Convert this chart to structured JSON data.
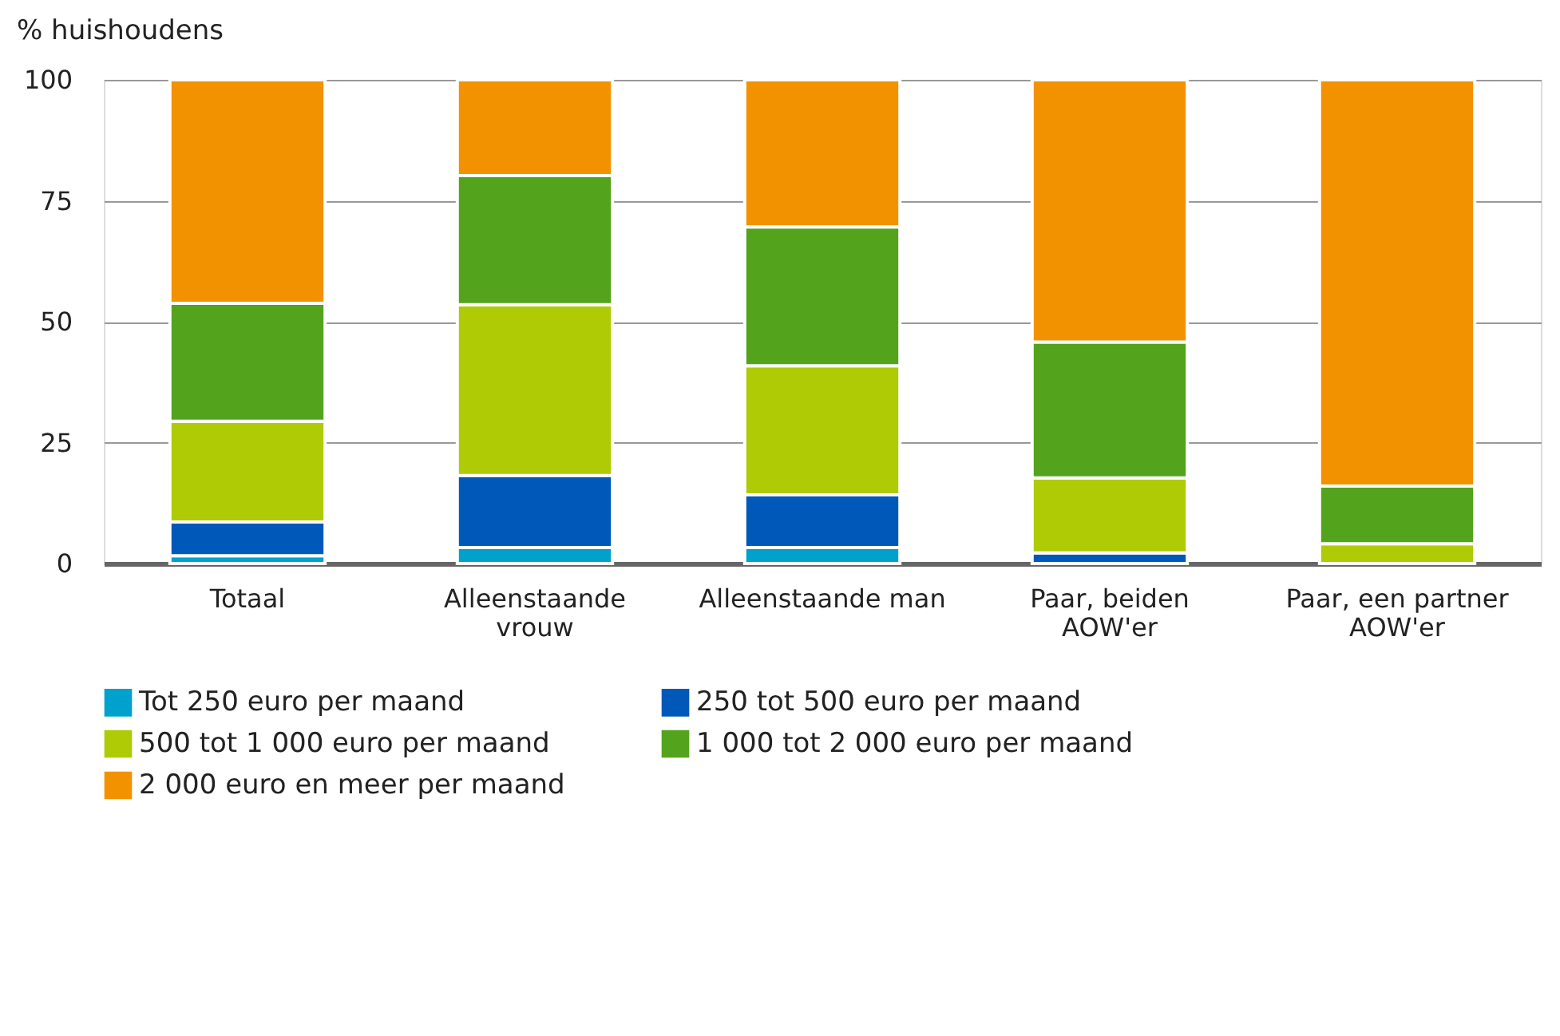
{
  "chart_data": {
    "type": "bar",
    "stacked": true,
    "ylabel": "% huishoudens",
    "categories": [
      "Totaal",
      "Alleenstaande vrouw",
      "Alleenstaande man",
      "Paar, beiden AOW'er",
      "Paar, een partner AOW'er"
    ],
    "series": [
      {
        "name": "Tot 250 euro per maand",
        "color": "#00a1cd",
        "values": [
          1.6,
          3.3,
          3.3,
          0,
          0
        ]
      },
      {
        "name": "250 tot 500 euro per maand",
        "color": "#0058b8",
        "values": [
          7.0,
          14.9,
          10.9,
          2.2,
          0
        ]
      },
      {
        "name": "500 tot 1 000 euro per maand",
        "color": "#afcb05",
        "values": [
          20.8,
          35.3,
          26.7,
          15.5,
          4.1
        ]
      },
      {
        "name": "1 000 tot 2 000 euro per maand",
        "color": "#53a31d",
        "values": [
          24.4,
          26.7,
          28.7,
          28.1,
          11.9
        ]
      },
      {
        "name": "2 000 euro en meer per maand",
        "color": "#f39200",
        "values": [
          46.2,
          19.8,
          30.4,
          54.2,
          84.0
        ]
      }
    ],
    "ylim": [
      0,
      100
    ],
    "yticks": [
      0,
      25,
      50,
      75,
      100
    ],
    "grid": "y",
    "legend": "bottom"
  }
}
